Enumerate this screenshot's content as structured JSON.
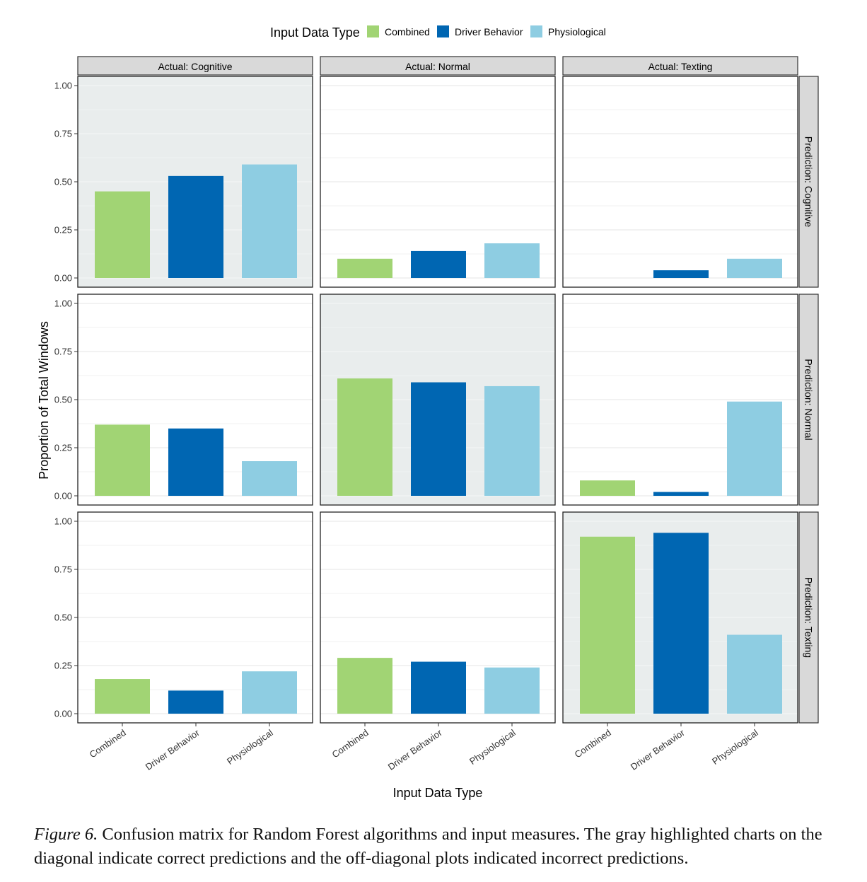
{
  "legend": {
    "title": "Input Data Type"
  },
  "colors": {
    "Combined": "#a1d474",
    "Driver Behavior": "#0066b2",
    "Physiological": "#8ecde2",
    "highlight_panel": "#e9eded",
    "plain_panel": "#ffffff",
    "strip": "#d9d9d9",
    "gridline": "#e6e6e6"
  },
  "chart_data": {
    "type": "bar",
    "facet_layout": "grid",
    "facet_columns": [
      "Actual: Cognitive",
      "Actual: Normal",
      "Actual: Texting"
    ],
    "facet_rows": [
      "Prediction: Cognitive",
      "Prediction: Normal",
      "Prediction: Texting"
    ],
    "categories": [
      "Combined",
      "Driver Behavior",
      "Physiological"
    ],
    "xlabel": "Input Data Type",
    "ylabel": "Proportion of Total Windows",
    "ylim": [
      0,
      1
    ],
    "yticks": [
      "0.00",
      "0.25",
      "0.50",
      "0.75",
      "1.00"
    ],
    "legend_position": "top",
    "highlight": "diagonal",
    "panels": [
      [
        {
          "values": [
            0.45,
            0.53,
            0.59
          ]
        },
        {
          "values": [
            0.1,
            0.14,
            0.18
          ]
        },
        {
          "values": [
            0.0,
            0.04,
            0.1
          ]
        }
      ],
      [
        {
          "values": [
            0.37,
            0.35,
            0.18
          ]
        },
        {
          "values": [
            0.61,
            0.59,
            0.57
          ]
        },
        {
          "values": [
            0.08,
            0.02,
            0.49
          ]
        }
      ],
      [
        {
          "values": [
            0.18,
            0.12,
            0.22
          ]
        },
        {
          "values": [
            0.29,
            0.27,
            0.24
          ]
        },
        {
          "values": [
            0.92,
            0.94,
            0.41
          ]
        }
      ]
    ]
  },
  "caption": {
    "label": "Figure 6.",
    "text": " Confusion matrix for Random Forest algorithms and input measures. The gray highlighted charts on the diagonal indicate correct predictions and the off-diagonal plots indicated incorrect predictions."
  }
}
